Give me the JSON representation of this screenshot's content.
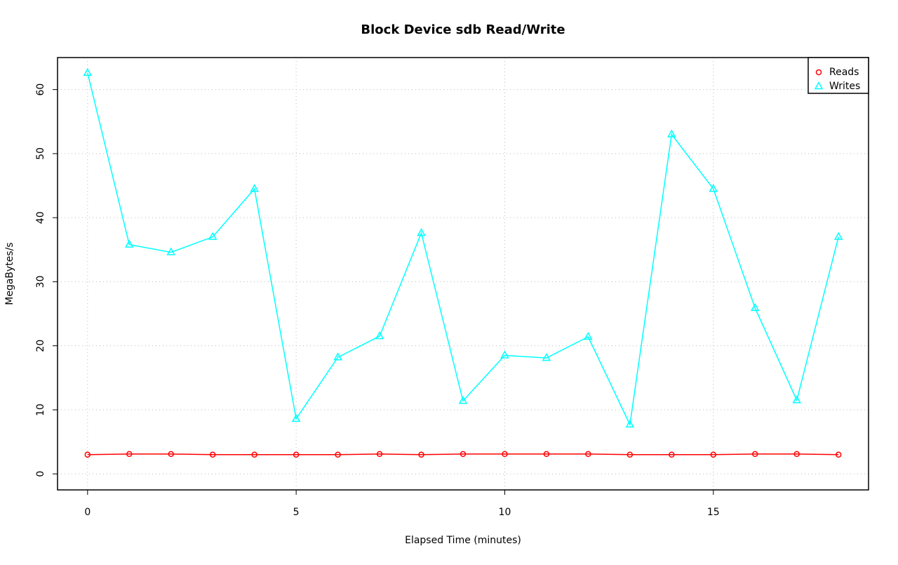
{
  "chart_data": {
    "type": "line",
    "title": "Block Device sdb Read/Write",
    "xlabel": "Elapsed Time (minutes)",
    "ylabel": "MegaBytes/s",
    "x": [
      0,
      1,
      2,
      3,
      4,
      5,
      6,
      7,
      8,
      9,
      10,
      11,
      12,
      13,
      14,
      15,
      16,
      17,
      18
    ],
    "series": [
      {
        "name": "Reads",
        "color": "#ff0000",
        "marker": "circle",
        "values": [
          3.0,
          3.1,
          3.1,
          3.0,
          3.0,
          3.0,
          3.0,
          3.1,
          3.0,
          3.1,
          3.1,
          3.1,
          3.1,
          3.0,
          3.0,
          3.0,
          3.1,
          3.1,
          3.0
        ]
      },
      {
        "name": "Writes",
        "color": "#00ffff",
        "marker": "triangle",
        "values": [
          62.6,
          35.8,
          34.6,
          37.0,
          44.5,
          8.6,
          18.2,
          21.5,
          37.6,
          11.4,
          18.5,
          18.1,
          21.4,
          7.7,
          53.0,
          44.5,
          25.9,
          11.5,
          37.0
        ]
      }
    ],
    "xlim": [
      -0.72,
      18.72
    ],
    "ylim": [
      -2.5,
      65
    ],
    "xticks": [
      0,
      5,
      10,
      15
    ],
    "yticks": [
      0,
      10,
      20,
      30,
      40,
      50,
      60
    ],
    "grid": true,
    "legend": "top-right"
  }
}
